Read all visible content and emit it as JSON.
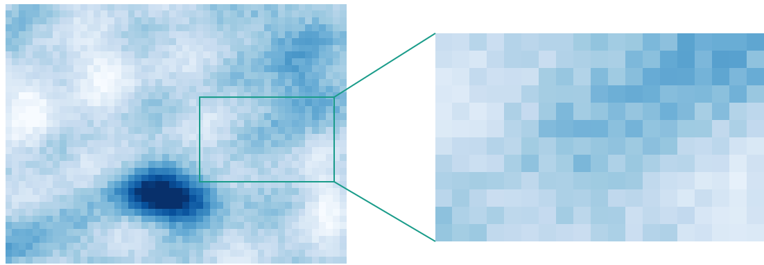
{
  "figure": {
    "type": "heatmap",
    "colormap": [
      "#f7fbff",
      "#deebf7",
      "#c6dbef",
      "#9ecae1",
      "#6baed6",
      "#4292c6",
      "#2171b5",
      "#08519c",
      "#08306b"
    ],
    "highlight_color": "#1a9c8a",
    "main_grid": {
      "cols": 50,
      "rows": 38
    },
    "zoom_grid": {
      "cols": 19,
      "rows": 12
    }
  }
}
